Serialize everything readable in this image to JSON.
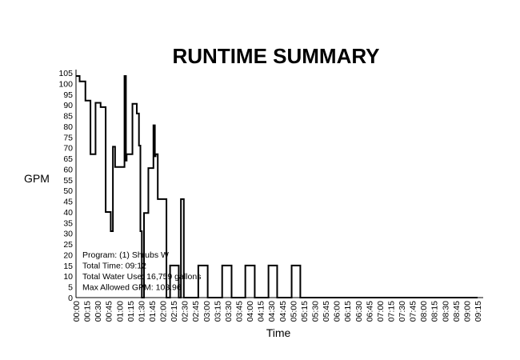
{
  "chart_data": {
    "type": "line",
    "title": "RUNTIME SUMMARY",
    "xlabel": "Time",
    "ylabel": "GPM",
    "ylim": [
      0,
      105
    ],
    "yticks": [
      0,
      5,
      10,
      15,
      20,
      25,
      30,
      35,
      40,
      45,
      50,
      55,
      60,
      65,
      70,
      75,
      80,
      85,
      90,
      95,
      100,
      105
    ],
    "xticks": [
      "00:00",
      "00:15",
      "00:30",
      "00:45",
      "01:00",
      "01:15",
      "01:30",
      "01:45",
      "02:00",
      "02:15",
      "02:30",
      "02:45",
      "03:00",
      "03:15",
      "03:30",
      "03:45",
      "04:00",
      "04:15",
      "04:30",
      "04:45",
      "05:00",
      "05:15",
      "05:30",
      "05:45",
      "06:00",
      "06:15",
      "06:30",
      "06:45",
      "07:00",
      "07:15",
      "07:30",
      "07:45",
      "08:00",
      "08:15",
      "08:30",
      "08:45",
      "09:00",
      "09:15"
    ],
    "grid": false,
    "line_color": "#000000",
    "series": [
      {
        "step": "post",
        "points": [
          {
            "x": "00:00",
            "y": 103.5
          },
          {
            "x": "00:05",
            "y": 101
          },
          {
            "x": "00:13",
            "y": 92
          },
          {
            "x": "00:20",
            "y": 67
          },
          {
            "x": "00:27",
            "y": 91
          },
          {
            "x": "00:34",
            "y": 89
          },
          {
            "x": "00:41",
            "y": 40
          },
          {
            "x": "00:48",
            "y": 31
          },
          {
            "x": "00:51",
            "y": 70.5
          },
          {
            "x": "00:54",
            "y": 61
          },
          {
            "x": "01:07",
            "y": 103.5
          },
          {
            "x": "01:09",
            "y": 64
          },
          {
            "x": "01:10",
            "y": 67
          },
          {
            "x": "01:18",
            "y": 90.5
          },
          {
            "x": "01:24",
            "y": 86
          },
          {
            "x": "01:27",
            "y": 71
          },
          {
            "x": "01:29",
            "y": 31
          },
          {
            "x": "01:31",
            "y": 0
          },
          {
            "x": "01:34",
            "y": 39.5
          },
          {
            "x": "01:40",
            "y": 60.5
          },
          {
            "x": "01:47",
            "y": 80.5
          },
          {
            "x": "01:49",
            "y": 66
          },
          {
            "x": "01:50",
            "y": 67
          },
          {
            "x": "01:53",
            "y": 46
          },
          {
            "x": "02:05",
            "y": 0
          },
          {
            "x": "02:10",
            "y": 15
          },
          {
            "x": "02:22",
            "y": 0
          },
          {
            "x": "02:25",
            "y": 46
          },
          {
            "x": "02:29",
            "y": 0
          },
          {
            "x": "02:49",
            "y": 15
          },
          {
            "x": "03:02",
            "y": 0
          },
          {
            "x": "03:22",
            "y": 15
          },
          {
            "x": "03:35",
            "y": 0
          },
          {
            "x": "03:54",
            "y": 15
          },
          {
            "x": "04:07",
            "y": 0
          },
          {
            "x": "04:26",
            "y": 15
          },
          {
            "x": "04:38",
            "y": 0
          },
          {
            "x": "04:58",
            "y": 15
          },
          {
            "x": "05:10",
            "y": 0
          }
        ]
      }
    ],
    "annotations": [
      {
        "text": "Program: (1) Shrubs W"
      },
      {
        "text": "Total Time: 09:12"
      },
      {
        "text": "Total Water Use: 16,759 gallons"
      },
      {
        "text": "Max Allowed GPM: 103.96"
      }
    ]
  }
}
